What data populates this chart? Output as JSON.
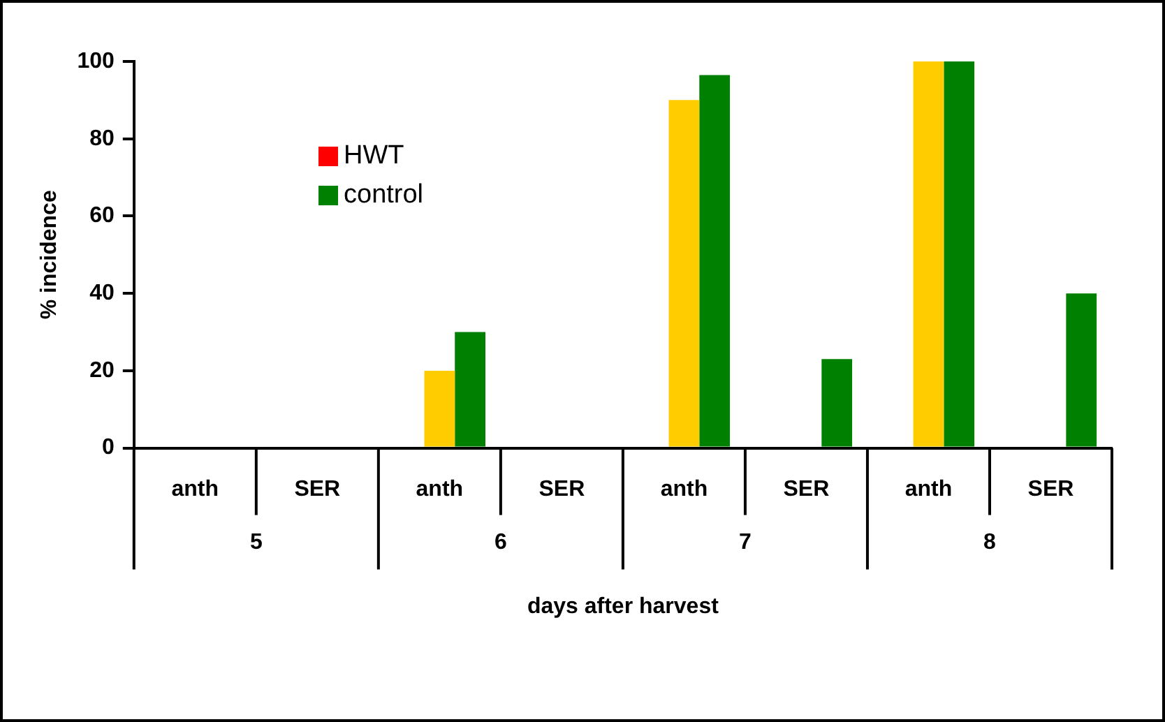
{
  "chart_data": {
    "type": "bar",
    "xlabel": "days after harvest",
    "ylabel": "% incidence",
    "categories": [
      "anth",
      "SER",
      "anth",
      "SER",
      "anth",
      "SER",
      "anth",
      "SER"
    ],
    "series": [
      {
        "name": "HWT",
        "color": "#ff0000",
        "values": [
          0,
          0,
          0,
          0,
          0,
          0,
          0,
          0
        ]
      },
      {
        "color": "#ffcc00",
        "values": [
          0,
          0,
          20,
          0,
          90,
          0,
          100,
          0
        ]
      },
      {
        "name": "control",
        "color": "#008000",
        "values": [
          0,
          0,
          30,
          0,
          96.5,
          23,
          100,
          40
        ]
      }
    ],
    "annotations": [
      "5",
      "6",
      "7",
      "8"
    ],
    "ylim": [
      0,
      100
    ],
    "yticks": [
      0,
      20,
      40,
      60,
      80,
      100
    ],
    "grid": false,
    "legend": "top left"
  }
}
